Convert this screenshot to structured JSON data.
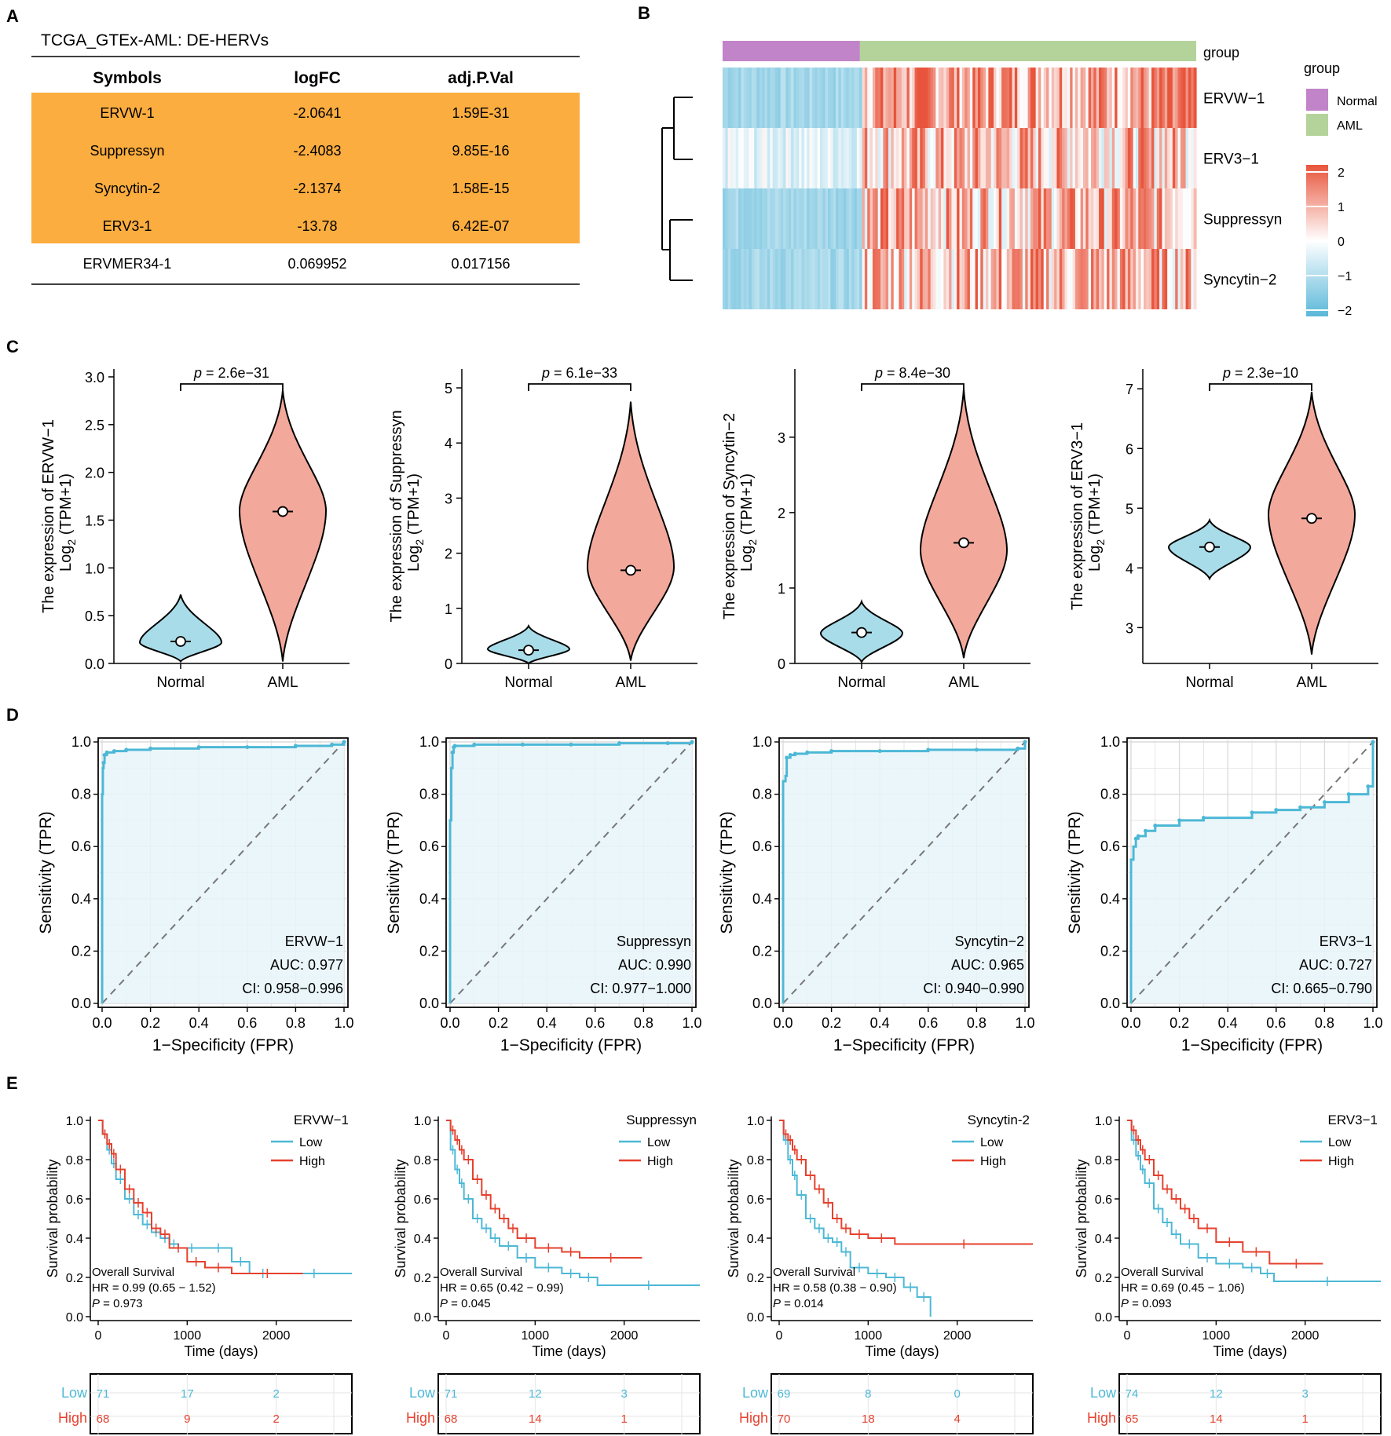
{
  "colors": {
    "orange": "#FBAD3F",
    "normal_fill": "#A8DCE9",
    "aml_fill": "#F2A89B",
    "roc_line": "#4DB8D6",
    "roc_fill": "#E8F4FA",
    "km_low": "#4DB8D6",
    "km_high": "#E6412E",
    "purple": "#C184C8",
    "green": "#B4D39A",
    "hm_red": "#E8553C",
    "hm_blue": "#5BB8D9"
  },
  "panels": {
    "a": "A",
    "b": "B",
    "c": "C",
    "d": "D",
    "e": "E"
  },
  "table": {
    "title": "TCGA_GTEx-AML: DE-HERVs",
    "headers": [
      "Symbols",
      "logFC",
      "adj.P.Val"
    ],
    "rows": [
      [
        "ERVW-1",
        "-2.0641",
        "1.59E-31"
      ],
      [
        "Suppressyn",
        "-2.4083",
        "9.85E-16"
      ],
      [
        "Syncytin-2",
        "-2.1374",
        "1.58E-15"
      ],
      [
        "ERV3-1",
        "-13.78",
        "6.42E-07"
      ],
      [
        "ERVMER34-1",
        "0.069952",
        "0.017156"
      ]
    ],
    "highlighted_rows": 4
  },
  "heatmap": {
    "rows": [
      "ERVW−1",
      "ERV3−1",
      "Suppressyn",
      "Syncytin−2"
    ],
    "annotation": "group",
    "legend_title": "group",
    "legend_items": [
      "Normal",
      "AML"
    ],
    "color_scale_ticks": [
      "2",
      "1",
      "0",
      "−1",
      "−2"
    ],
    "normal_fraction": 0.29
  },
  "chart_data": [
    {
      "type": "violin",
      "gene": "ERVW-1",
      "ylabel_line1": "The expression of ERVW−1",
      "ylabel_line2": "Log",
      "ylabel_sub": "2",
      "ylabel_tail": " (TPM+1)",
      "p_prefix": "p",
      "p_text": " = 2.6e−31",
      "categories": [
        "Normal",
        "AML"
      ],
      "ylim": [
        0,
        3.0
      ],
      "yticks": [
        "0.0",
        "0.5",
        "1.0",
        "1.5",
        "2.0",
        "2.5",
        "3.0"
      ],
      "yvals": [
        0,
        0.5,
        1.0,
        1.5,
        2.0,
        2.5,
        3.0
      ],
      "normal": {
        "min": 0.02,
        "max": 0.72,
        "median": 0.23,
        "mode": 0.22
      },
      "aml": {
        "min": 0.02,
        "max": 2.86,
        "median": 1.59,
        "mode": 1.6
      }
    },
    {
      "type": "violin",
      "gene": "Suppressyn",
      "ylabel_line1": "The expression of Suppressyn",
      "ylabel_line2": "Log",
      "ylabel_sub": "2",
      "ylabel_tail": " (TPM+1)",
      "p_prefix": "p",
      "p_text": " = 6.1e−33",
      "categories": [
        "Normal",
        "AML"
      ],
      "ylim": [
        0,
        5.2
      ],
      "yticks": [
        "0",
        "1",
        "2",
        "3",
        "4",
        "5"
      ],
      "yvals": [
        0,
        1,
        2,
        3,
        4,
        5
      ],
      "normal": {
        "min": 0.0,
        "max": 0.68,
        "median": 0.24,
        "mode": 0.26
      },
      "aml": {
        "min": 0.05,
        "max": 4.75,
        "median": 1.69,
        "mode": 1.75
      }
    },
    {
      "type": "violin",
      "gene": "Syncytin-2",
      "ylabel_line1": "The expression of Syncytin−2",
      "ylabel_line2": "Log",
      "ylabel_sub": "2",
      "ylabel_tail": " (TPM+1)",
      "p_prefix": "p",
      "p_text": " = 8.4e−30",
      "categories": [
        "Normal",
        "AML"
      ],
      "ylim": [
        0,
        3.8
      ],
      "yticks": [
        "0",
        "1",
        "2",
        "3"
      ],
      "yvals": [
        0,
        1,
        2,
        3
      ],
      "normal": {
        "min": 0.02,
        "max": 0.82,
        "median": 0.41,
        "mode": 0.4
      },
      "aml": {
        "min": 0.07,
        "max": 3.64,
        "median": 1.6,
        "mode": 1.5
      }
    },
    {
      "type": "violin",
      "gene": "ERV3-1",
      "ylabel_line1": "The expression of ERV3−1",
      "ylabel_line2": "Log",
      "ylabel_sub": "2",
      "ylabel_tail": " (TPM+1)",
      "p_prefix": "p",
      "p_text": " = 2.3e−10",
      "categories": [
        "Normal",
        "AML"
      ],
      "ylim": [
        2.4,
        7.2
      ],
      "yticks": [
        "3",
        "4",
        "5",
        "6",
        "7"
      ],
      "yvals": [
        3,
        4,
        5,
        6,
        7
      ],
      "normal": {
        "min": 3.82,
        "max": 4.8,
        "median": 4.35,
        "mode": 4.35
      },
      "aml": {
        "min": 2.55,
        "max": 6.95,
        "median": 4.83,
        "mode": 4.9
      }
    },
    {
      "type": "roc",
      "gene": "ERVW−1",
      "auc": "AUC: 0.977",
      "ci": "CI: 0.958−0.996",
      "xlabel": "1−Specificity (FPR)",
      "ylabel": "Sensitivity (TPR)",
      "ticks": [
        "0.0",
        "0.2",
        "0.4",
        "0.6",
        "0.8",
        "1.0"
      ],
      "x": [
        0,
        0,
        0.003,
        0.006,
        0.01,
        0.02,
        0.05,
        0.1,
        0.2,
        0.4,
        0.6,
        0.8,
        0.95,
        1.0
      ],
      "y": [
        0,
        0.8,
        0.9,
        0.92,
        0.95,
        0.96,
        0.965,
        0.97,
        0.975,
        0.98,
        0.98,
        0.985,
        0.99,
        1.0
      ]
    },
    {
      "type": "roc",
      "gene": "Suppressyn",
      "auc": "AUC: 0.990",
      "ci": "CI: 0.977−1.000",
      "xlabel": "1−Specificity (FPR)",
      "ylabel": "Sensitivity (TPR)",
      "ticks": [
        "0.0",
        "0.2",
        "0.4",
        "0.6",
        "0.8",
        "1.0"
      ],
      "x": [
        0,
        0,
        0.005,
        0.01,
        0.015,
        0.02,
        0.1,
        0.3,
        0.5,
        0.7,
        0.9,
        1.0
      ],
      "y": [
        0,
        0.7,
        0.9,
        0.96,
        0.98,
        0.985,
        0.99,
        0.99,
        0.99,
        0.995,
        0.995,
        1.0
      ],
      "_note": ""
    },
    {
      "type": "roc",
      "gene": "Syncytin−2",
      "auc": "AUC: 0.965",
      "ci": "CI: 0.940−0.990",
      "xlabel": "1−Specificity (FPR)",
      "ylabel": "Sensitivity (TPR)",
      "ticks": [
        "0.0",
        "0.2",
        "0.4",
        "0.6",
        "0.8",
        "1.0"
      ],
      "x": [
        0,
        0,
        0.01,
        0.015,
        0.03,
        0.05,
        0.1,
        0.2,
        0.4,
        0.6,
        0.8,
        0.97,
        1.0
      ],
      "y": [
        0,
        0.85,
        0.87,
        0.94,
        0.95,
        0.955,
        0.96,
        0.965,
        0.965,
        0.97,
        0.97,
        0.975,
        1.0
      ]
    },
    {
      "type": "roc",
      "gene": "ERV3−1",
      "auc": "AUC: 0.727",
      "ci": "CI: 0.665−0.790",
      "xlabel": "1−Specificity (FPR)",
      "ylabel": "Sensitivity (TPR)",
      "ticks": [
        "0.0",
        "0.2",
        "0.4",
        "0.6",
        "0.8",
        "1.0"
      ],
      "x": [
        0,
        0,
        0.01,
        0.02,
        0.03,
        0.06,
        0.1,
        0.2,
        0.3,
        0.5,
        0.6,
        0.7,
        0.8,
        0.9,
        0.98,
        1.0
      ],
      "y": [
        0,
        0.55,
        0.6,
        0.63,
        0.64,
        0.66,
        0.68,
        0.7,
        0.71,
        0.73,
        0.74,
        0.75,
        0.77,
        0.8,
        0.83,
        1.0
      ]
    },
    {
      "type": "km",
      "gene": "ERVW−1",
      "legend": [
        "Low",
        "High"
      ],
      "os_label": "Overall Survival",
      "hr": "HR = 0.99 (0.65 − 1.52)",
      "p_prefix": "P",
      "p_text": " = 0.973",
      "xlabel": "Time (days)",
      "ylabel": "Survival probability",
      "xticks": [
        "0",
        "1000",
        "2000"
      ],
      "xvals": [
        0,
        1000,
        2000
      ],
      "yticks": [
        "0.0",
        "0.2",
        "0.4",
        "0.6",
        "0.8",
        "1.0"
      ],
      "xmax": 2850,
      "low": {
        "t": [
          0,
          50,
          100,
          150,
          200,
          300,
          400,
          500,
          600,
          700,
          800,
          900,
          1200,
          1500,
          1700,
          2000,
          2850
        ],
        "s": [
          1.0,
          0.93,
          0.85,
          0.78,
          0.7,
          0.6,
          0.52,
          0.47,
          0.43,
          0.4,
          0.37,
          0.35,
          0.35,
          0.28,
          0.22,
          0.22,
          0.22
        ]
      },
      "high": {
        "t": [
          0,
          50,
          100,
          150,
          200,
          300,
          400,
          500,
          600,
          700,
          800,
          1000,
          1200,
          1500,
          2300
        ],
        "s": [
          1.0,
          0.93,
          0.88,
          0.83,
          0.75,
          0.65,
          0.58,
          0.53,
          0.45,
          0.42,
          0.35,
          0.28,
          0.25,
          0.22,
          0.22
        ]
      },
      "risk": {
        "low": [
          "71",
          "17",
          "2"
        ],
        "high": [
          "68",
          "9",
          "2"
        ]
      }
    },
    {
      "type": "km",
      "gene": "Suppressyn",
      "legend": [
        "Low",
        "High"
      ],
      "os_label": "Overall Survival",
      "hr": "HR = 0.65 (0.42 − 0.99)",
      "p_prefix": "P",
      "p_text": " = 0.045",
      "xlabel": "Time (days)",
      "ylabel": "Survival probability",
      "xticks": [
        "0",
        "1000",
        "2000"
      ],
      "xvals": [
        0,
        1000,
        2000
      ],
      "yticks": [
        "0.0",
        "0.2",
        "0.4",
        "0.6",
        "0.8",
        "1.0"
      ],
      "xmax": 2850,
      "low": {
        "t": [
          0,
          50,
          100,
          150,
          200,
          300,
          400,
          500,
          600,
          800,
          1000,
          1300,
          1500,
          1700,
          2850
        ],
        "s": [
          1.0,
          0.85,
          0.75,
          0.68,
          0.6,
          0.5,
          0.45,
          0.4,
          0.36,
          0.3,
          0.25,
          0.22,
          0.2,
          0.16,
          0.16
        ]
      },
      "high": {
        "t": [
          0,
          50,
          100,
          150,
          200,
          300,
          400,
          500,
          600,
          700,
          800,
          1000,
          1300,
          1500,
          2200
        ],
        "s": [
          1.0,
          0.95,
          0.9,
          0.85,
          0.8,
          0.7,
          0.62,
          0.55,
          0.5,
          0.45,
          0.4,
          0.35,
          0.33,
          0.3,
          0.3
        ]
      },
      "risk": {
        "low": [
          "71",
          "12",
          "3"
        ],
        "high": [
          "68",
          "14",
          "1"
        ]
      }
    },
    {
      "type": "km",
      "gene": "Syncytin-2",
      "legend": [
        "Low",
        "High"
      ],
      "os_label": "Overall Survival",
      "hr": "HR = 0.58 (0.38 − 0.90)",
      "p_prefix": "P",
      "p_text": " = 0.014",
      "xlabel": "Time (days)",
      "ylabel": "Survival probability",
      "xticks": [
        "0",
        "1000",
        "2000"
      ],
      "xvals": [
        0,
        1000,
        2000
      ],
      "yticks": [
        "0.0",
        "0.2",
        "0.4",
        "0.6",
        "0.8",
        "1.0"
      ],
      "xmax": 2850,
      "low": {
        "t": [
          0,
          50,
          100,
          150,
          200,
          300,
          400,
          500,
          600,
          700,
          800,
          1000,
          1200,
          1400,
          1550,
          1700
        ],
        "s": [
          1.0,
          0.9,
          0.8,
          0.72,
          0.62,
          0.5,
          0.45,
          0.4,
          0.38,
          0.33,
          0.25,
          0.22,
          0.2,
          0.15,
          0.1,
          0.0
        ]
      },
      "high": {
        "t": [
          0,
          50,
          100,
          150,
          200,
          300,
          400,
          500,
          600,
          700,
          800,
          1000,
          1300,
          2850
        ],
        "s": [
          1.0,
          0.93,
          0.9,
          0.85,
          0.8,
          0.72,
          0.65,
          0.58,
          0.5,
          0.45,
          0.42,
          0.4,
          0.37,
          0.37
        ]
      },
      "risk": {
        "low": [
          "69",
          "8",
          "0"
        ],
        "high": [
          "70",
          "18",
          "4"
        ]
      }
    },
    {
      "type": "km",
      "gene": "ERV3−1",
      "legend": [
        "Low",
        "High"
      ],
      "os_label": "Overall Survival",
      "hr": "HR = 0.69 (0.45 − 1.06)",
      "p_prefix": "P",
      "p_text": " = 0.093",
      "xlabel": "Time (days)",
      "ylabel": "Survival probability",
      "xticks": [
        "0",
        "1000",
        "2000"
      ],
      "xvals": [
        0,
        1000,
        2000
      ],
      "yticks": [
        "0.0",
        "0.2",
        "0.4",
        "0.6",
        "0.8",
        "1.0"
      ],
      "xmax": 2850,
      "low": {
        "t": [
          0,
          50,
          100,
          150,
          200,
          300,
          400,
          500,
          600,
          800,
          1000,
          1300,
          1500,
          1650,
          2850
        ],
        "s": [
          1.0,
          0.9,
          0.82,
          0.75,
          0.68,
          0.55,
          0.48,
          0.42,
          0.37,
          0.3,
          0.27,
          0.25,
          0.22,
          0.18,
          0.18
        ]
      },
      "high": {
        "t": [
          0,
          50,
          100,
          150,
          200,
          300,
          400,
          500,
          600,
          700,
          800,
          1000,
          1300,
          1600,
          2200
        ],
        "s": [
          1.0,
          0.95,
          0.9,
          0.85,
          0.8,
          0.72,
          0.65,
          0.6,
          0.55,
          0.5,
          0.45,
          0.38,
          0.33,
          0.27,
          0.27
        ]
      },
      "risk": {
        "low": [
          "74",
          "12",
          "3"
        ],
        "high": [
          "65",
          "14",
          "1"
        ]
      }
    }
  ],
  "risk_labels": [
    "Low",
    "High"
  ]
}
